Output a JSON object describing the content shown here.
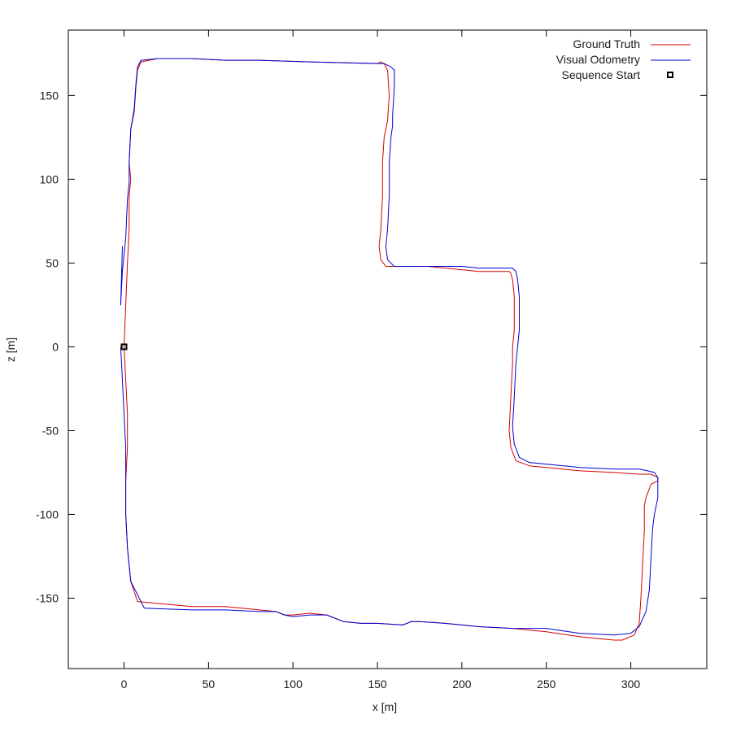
{
  "chart_data": {
    "type": "line",
    "xlabel": "x [m]",
    "ylabel": "z [m]",
    "xlim": [
      -33,
      345
    ],
    "ylim": [
      -192,
      189
    ],
    "xticks": [
      0,
      50,
      100,
      150,
      200,
      250,
      300
    ],
    "yticks": [
      -150,
      -100,
      -50,
      0,
      50,
      100,
      150
    ],
    "grid": false,
    "legend_position": "top-right",
    "series": [
      {
        "name": "Ground Truth",
        "color": "#d40000",
        "x": [
          0,
          1,
          2,
          2,
          1,
          1,
          2,
          4,
          8,
          40,
          60,
          80,
          90,
          95,
          100,
          110,
          120,
          130,
          140,
          150,
          165,
          170,
          175,
          190,
          200,
          210,
          230,
          250,
          270,
          290,
          295,
          302,
          305,
          306,
          307,
          308,
          308,
          309,
          312,
          316,
          316,
          314,
          312,
          305,
          290,
          270,
          240,
          232,
          229,
          228,
          229,
          230,
          230,
          231,
          231,
          230,
          229,
          228,
          224,
          210,
          200,
          190,
          180,
          155,
          152,
          151,
          152,
          153,
          153,
          154,
          155,
          156,
          157,
          156,
          154,
          152,
          150,
          110,
          80,
          60,
          40,
          20,
          10,
          8,
          7,
          6,
          4,
          3,
          4,
          3,
          3,
          2,
          1,
          0
        ],
        "y": [
          0,
          -20,
          -40,
          -60,
          -80,
          -100,
          -120,
          -140,
          -152,
          -155,
          -155,
          -157,
          -158,
          -160,
          -160,
          -159,
          -160,
          -164,
          -165,
          -165,
          -166,
          -164,
          -164,
          -165,
          -166,
          -167,
          -168,
          -170,
          -173,
          -175,
          -175,
          -172,
          -165,
          -150,
          -130,
          -110,
          -95,
          -90,
          -82,
          -80,
          -78,
          -77,
          -76,
          -76,
          -75,
          -74,
          -71,
          -68,
          -60,
          -50,
          -30,
          -10,
          0,
          10,
          30,
          40,
          44,
          45,
          45,
          45,
          46,
          47,
          48,
          48,
          52,
          60,
          70,
          90,
          110,
          125,
          130,
          135,
          150,
          165,
          169,
          170,
          169,
          170,
          171,
          171,
          172,
          172,
          170,
          165,
          155,
          140,
          130,
          110,
          100,
          90,
          70,
          50,
          25,
          0
        ]
      },
      {
        "name": "Visual Odometry",
        "color": "#0000d4",
        "x": [
          -2,
          -1,
          0,
          1,
          1,
          1,
          2,
          4,
          12,
          40,
          60,
          80,
          90,
          95,
          100,
          110,
          120,
          130,
          140,
          150,
          165,
          170,
          175,
          190,
          200,
          210,
          230,
          250,
          270,
          290,
          300,
          305,
          309,
          311,
          312,
          313,
          314,
          315,
          316,
          316,
          316,
          314,
          310,
          305,
          290,
          270,
          240,
          234,
          231,
          230,
          231,
          232,
          233,
          234,
          234,
          233,
          232,
          230,
          225,
          210,
          200,
          190,
          180,
          160,
          156,
          155,
          156,
          157,
          157,
          158,
          159,
          159,
          160,
          160,
          158,
          156,
          154,
          110,
          80,
          60,
          40,
          20,
          10,
          8,
          7,
          6,
          4,
          3,
          3,
          2,
          1,
          -1,
          -2,
          -1
        ],
        "y": [
          0,
          -20,
          -40,
          -60,
          -80,
          -100,
          -120,
          -140,
          -156,
          -157,
          -157,
          -158,
          -158,
          -160,
          -161,
          -160,
          -160,
          -164,
          -165,
          -165,
          -166,
          -164,
          -164,
          -165,
          -166,
          -167,
          -168,
          -168,
          -171,
          -172,
          -171,
          -167,
          -158,
          -145,
          -125,
          -108,
          -100,
          -95,
          -90,
          -82,
          -78,
          -75,
          -74,
          -73,
          -73,
          -72,
          -69,
          -66,
          -58,
          -48,
          -30,
          -10,
          0,
          10,
          30,
          40,
          45,
          47,
          47,
          47,
          48,
          48,
          48,
          48,
          52,
          60,
          70,
          90,
          110,
          125,
          132,
          138,
          155,
          165,
          167,
          168,
          169,
          170,
          171,
          171,
          172,
          172,
          171,
          167,
          157,
          142,
          130,
          110,
          98,
          88,
          65,
          45,
          25,
          60
        ]
      }
    ],
    "marker": {
      "name": "Sequence Start",
      "x": 0,
      "y": 0,
      "color": "#000000"
    }
  }
}
